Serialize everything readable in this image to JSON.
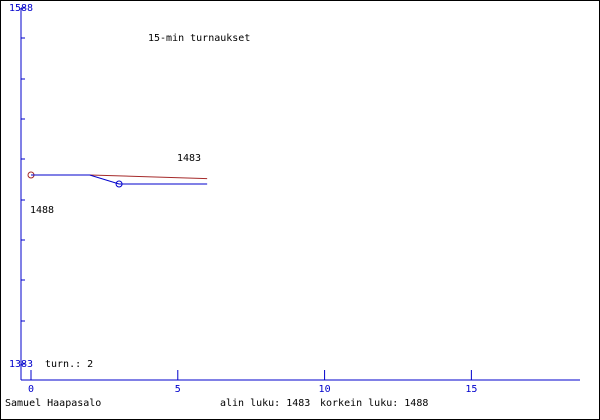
{
  "chart_data": {
    "type": "line",
    "title": "15-min turnaukset",
    "x_series_note_free": null,
    "series": [
      {
        "name": null,
        "color": "#a52a2a",
        "x": [
          0,
          2,
          6
        ],
        "values": [
          1488,
          1488,
          1486
        ]
      },
      {
        "name": null,
        "color": "#0000cc",
        "x": [
          0,
          2,
          3,
          6
        ],
        "values": [
          1488,
          1488,
          1483,
          1483
        ]
      }
    ],
    "xlim": [
      0,
      18.7
    ],
    "xticks": [
      0,
      5,
      10,
      15
    ],
    "ylim": [
      1383,
      1588
    ],
    "yticks": [
      1383,
      1588
    ],
    "annotations": [
      "1483",
      "1488",
      "turn.: 2"
    ],
    "footer": [
      "Samuel Haapasalo",
      "alin luku: 1483",
      "korkein luku: 1488"
    ]
  }
}
